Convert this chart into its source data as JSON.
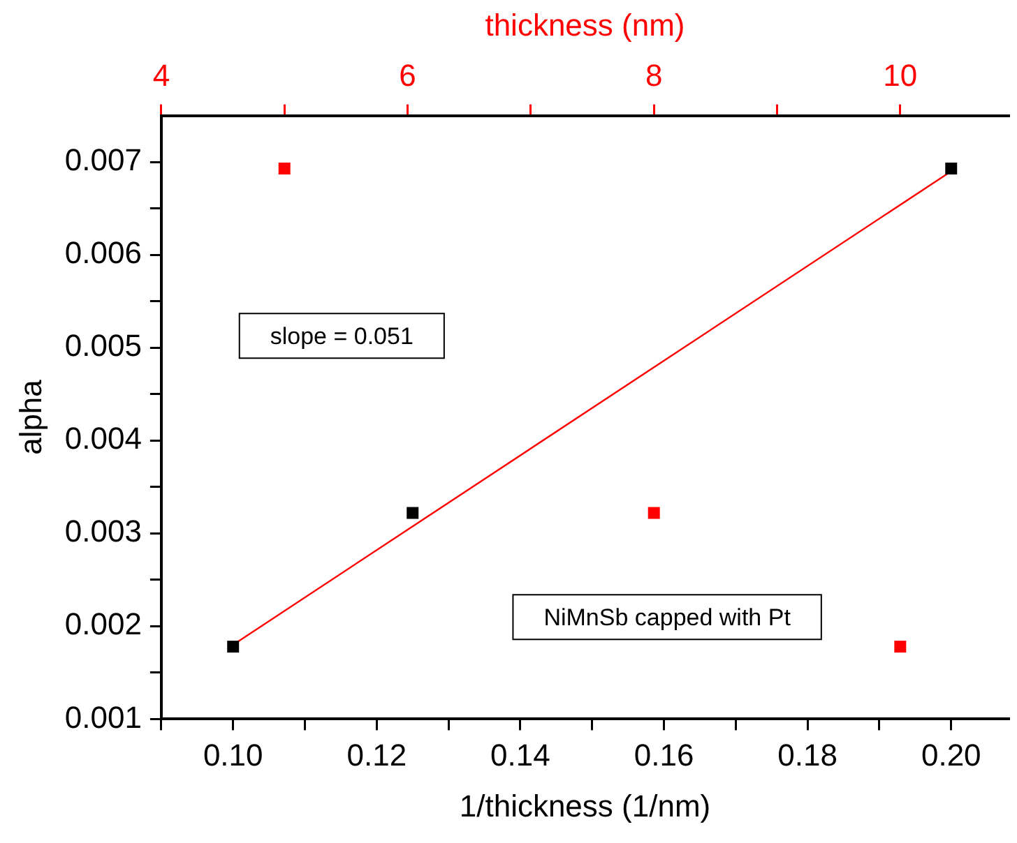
{
  "chart_data": {
    "type": "scatter",
    "xlabel": "1/thickness (1/nm)",
    "ylabel": "alpha",
    "x2label": "thickness (nm)",
    "series": [
      {
        "color": "#000000",
        "x": [
          0.1,
          0.125,
          0.2
        ],
        "values": [
          0.00178,
          0.00322,
          0.00693
        ]
      },
      {
        "color": "#ff0000",
        "axis": "x2",
        "x": [
          5,
          8,
          10
        ],
        "values": [
          0.00693,
          0.00322,
          0.00178
        ]
      },
      {
        "type": "line",
        "marker": "none",
        "color": "#ff0000",
        "x": [
          0.1,
          0.2
        ],
        "values": [
          0.0018,
          0.0069
        ]
      }
    ],
    "xlim": [
      0.09,
      0.208
    ],
    "xticks": [
      {
        "value": 0.09,
        "label": null
      },
      {
        "value": 0.1,
        "label": "0.10"
      },
      {
        "value": 0.11,
        "label": null
      },
      {
        "value": 0.12,
        "label": "0.12"
      },
      {
        "value": 0.13,
        "label": null
      },
      {
        "value": 0.14,
        "label": "0.14"
      },
      {
        "value": 0.15,
        "label": null
      },
      {
        "value": 0.16,
        "label": "0.16"
      },
      {
        "value": 0.17,
        "label": null
      },
      {
        "value": 0.18,
        "label": "0.18"
      },
      {
        "value": 0.19,
        "label": null
      },
      {
        "value": 0.2,
        "label": "0.20"
      }
    ],
    "x2lim": [
      4,
      10.88
    ],
    "x2ticks": [
      4,
      {
        "value": 5,
        "label": null
      },
      6,
      {
        "value": 7,
        "label": null
      },
      8,
      {
        "value": 9,
        "label": null
      },
      10
    ],
    "ylim": [
      0.001,
      0.0075
    ],
    "yticks": [
      0.001,
      {
        "value": 0.0015,
        "label": null
      },
      0.002,
      {
        "value": 0.0025,
        "label": null
      },
      0.003,
      {
        "value": 0.0035,
        "label": null
      },
      0.004,
      {
        "value": 0.0045,
        "label": null
      },
      0.005,
      {
        "value": 0.0055,
        "label": null
      },
      0.006,
      {
        "value": 0.0065,
        "label": null
      },
      0.007
    ],
    "grid": false,
    "legend": false,
    "marker": "square",
    "annotations": [
      "slope = 0.051",
      "NiMnSb capped with Pt"
    ]
  }
}
